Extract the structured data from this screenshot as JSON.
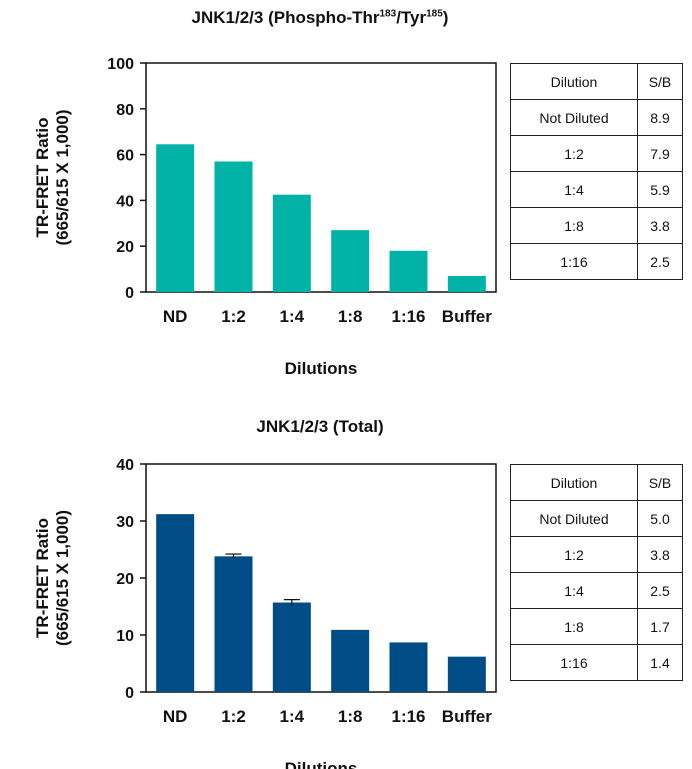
{
  "panels": [
    {
      "title_main": "JNK1/2/3 (Phospho-Thr",
      "title_sup1": "183",
      "title_mid": "/Tyr",
      "title_sup2": "185",
      "title_end": ")",
      "table": {
        "headers": [
          "Dilution",
          "S/B"
        ],
        "rows": [
          [
            "Not Diluted",
            "8.9"
          ],
          [
            "1:2",
            "7.9"
          ],
          [
            "1:4",
            "5.9"
          ],
          [
            "1:8",
            "3.8"
          ],
          [
            "1:16",
            "2.5"
          ]
        ]
      }
    },
    {
      "title_main": "JNK1/2/3 (Total)",
      "table": {
        "headers": [
          "Dilution",
          "S/B"
        ],
        "rows": [
          [
            "Not Diluted",
            "5.0"
          ],
          [
            "1:2",
            "3.8"
          ],
          [
            "1:4",
            "2.5"
          ],
          [
            "1:8",
            "1.7"
          ],
          [
            "1:16",
            "1.4"
          ]
        ]
      }
    }
  ],
  "chart_data": [
    {
      "type": "bar",
      "title": "JNK1/2/3 (Phospho-Thr183/Tyr185)",
      "categories": [
        "ND",
        "1:2",
        "1:4",
        "1:8",
        "1:16",
        "Buffer"
      ],
      "values": [
        64.5,
        57,
        42.5,
        27,
        18,
        7
      ],
      "errors": [
        0,
        0,
        0,
        0,
        0,
        0
      ],
      "xlabel": "Dilutions",
      "ylabel_line1": "TR-FRET Ratio",
      "ylabel_line2": "(665/615 X 1,000)",
      "ylim": [
        0,
        100
      ],
      "yticks": [
        0,
        20,
        40,
        60,
        80,
        100
      ],
      "color": "#00b3a6"
    },
    {
      "type": "bar",
      "title": "JNK1/2/3 (Total)",
      "categories": [
        "ND",
        "1:2",
        "1:4",
        "1:8",
        "1:16",
        "Buffer"
      ],
      "values": [
        31.2,
        23.8,
        15.7,
        10.9,
        8.7,
        6.2
      ],
      "errors": [
        0,
        0.4,
        0.5,
        0,
        0,
        0
      ],
      "xlabel": "Dilutions",
      "ylabel_line1": "TR-FRET Ratio",
      "ylabel_line2": "(665/615 X 1,000)",
      "ylim": [
        0,
        40
      ],
      "yticks": [
        0,
        10,
        20,
        30,
        40
      ],
      "color": "#004c87"
    }
  ]
}
